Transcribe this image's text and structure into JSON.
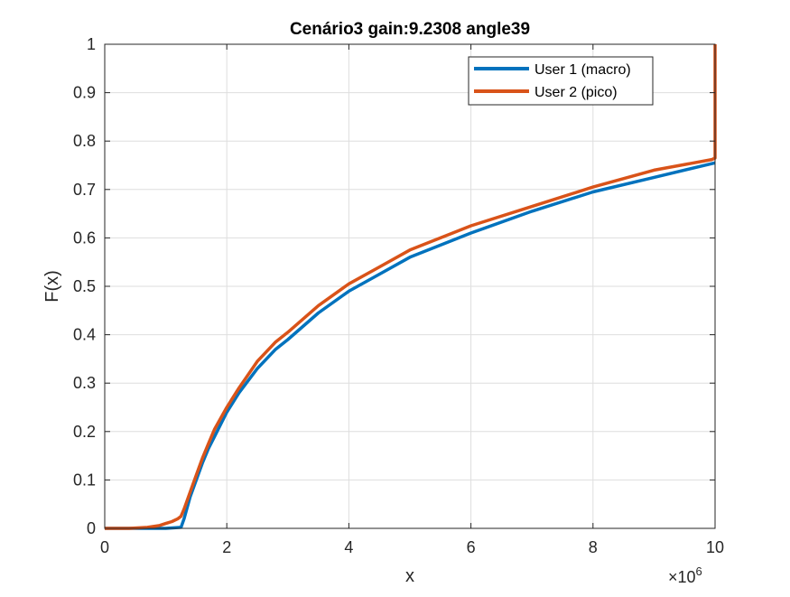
{
  "chart_data": {
    "type": "line",
    "title": "Cenário3 gain:9.2308 angle39",
    "xlabel": "x",
    "ylabel": "F(x)",
    "x_exponent_base": "×10",
    "x_exponent_power": "6",
    "xlim": [
      0,
      10
    ],
    "ylim": [
      0,
      1
    ],
    "xticks": [
      "0",
      "2",
      "4",
      "6",
      "8",
      "10"
    ],
    "yticks": [
      "0",
      "0.1",
      "0.2",
      "0.3",
      "0.4",
      "0.5",
      "0.6",
      "0.7",
      "0.8",
      "0.9",
      "1"
    ],
    "grid": true,
    "legend_position": "top-right",
    "series": [
      {
        "name": "User 1 (macro)",
        "color": "#0072BD",
        "x": [
          0,
          0.6,
          1.0,
          1.25,
          1.3,
          1.4,
          1.5,
          1.6,
          1.7,
          1.8,
          2.0,
          2.2,
          2.5,
          2.8,
          3.0,
          3.5,
          4.0,
          4.5,
          5.0,
          6.0,
          7.0,
          8.0,
          9.0,
          10.0
        ],
        "y": [
          0,
          0,
          0,
          0.002,
          0.02,
          0.065,
          0.1,
          0.135,
          0.165,
          0.19,
          0.24,
          0.28,
          0.33,
          0.37,
          0.39,
          0.445,
          0.49,
          0.525,
          0.56,
          0.61,
          0.655,
          0.695,
          0.725,
          0.755
        ]
      },
      {
        "name": "User 2 (pico)",
        "color": "#D95319",
        "x": [
          0,
          0.4,
          0.7,
          0.9,
          1.0,
          1.1,
          1.2,
          1.25,
          1.3,
          1.4,
          1.5,
          1.6,
          1.7,
          1.8,
          2.0,
          2.2,
          2.5,
          2.8,
          3.0,
          3.5,
          4.0,
          4.5,
          5.0,
          6.0,
          7.0,
          8.0,
          9.0,
          9.95,
          10.0,
          10.0
        ],
        "y": [
          0,
          0,
          0.002,
          0.006,
          0.01,
          0.014,
          0.02,
          0.025,
          0.04,
          0.075,
          0.11,
          0.145,
          0.175,
          0.205,
          0.25,
          0.29,
          0.345,
          0.385,
          0.405,
          0.46,
          0.505,
          0.54,
          0.575,
          0.625,
          0.665,
          0.705,
          0.74,
          0.762,
          0.765,
          1.0
        ]
      }
    ]
  }
}
